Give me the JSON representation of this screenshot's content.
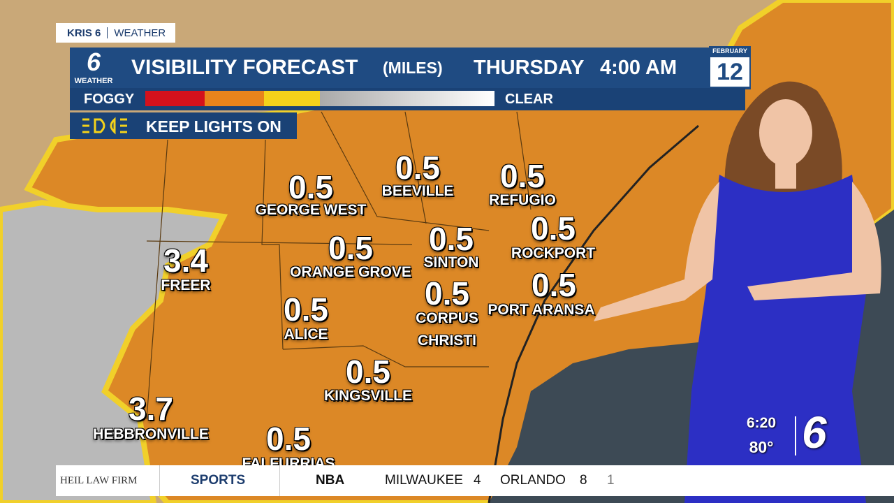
{
  "header": {
    "station": "KRIS 6",
    "section": "WEATHER"
  },
  "title_bar": {
    "logo": "6",
    "logo_caption": "WEATHER",
    "title": "VISIBILITY FORECAST",
    "units": "(MILES)",
    "day": "THURSDAY",
    "time": "4:00 AM",
    "month": "FEBRUARY",
    "date": "12"
  },
  "legend": {
    "low": "FOGGY",
    "high": "CLEAR"
  },
  "advisory": "KEEP LIGHTS ON",
  "cities": [
    {
      "value": "0.5",
      "name": "GEORGE WEST"
    },
    {
      "value": "0.5",
      "name": "BEEVILLE"
    },
    {
      "value": "0.5",
      "name": "REFUGIO"
    },
    {
      "value": "3.4",
      "name": "FREER"
    },
    {
      "value": "0.5",
      "name": "ORANGE GROVE"
    },
    {
      "value": "0.5",
      "name": "SINTON"
    },
    {
      "value": "0.5",
      "name": "ROCKPORT"
    },
    {
      "value": "0.5",
      "name": "ALICE"
    },
    {
      "value": "0.5",
      "name": "CORPUS CHRISTI"
    },
    {
      "value": "0.5",
      "name": "PORT ARANSA"
    },
    {
      "value": "0.5",
      "name": "KINGSVILLE"
    },
    {
      "value": "3.7",
      "name": "HEBBRONVILLE"
    },
    {
      "value": "0.5",
      "name": "FALFURRIAS"
    }
  ],
  "corner": {
    "time": "6:20",
    "temperature": "80°",
    "logo": "6"
  },
  "ticker": {
    "sponsor": "HEIL LAW FIRM",
    "section": "SPORTS",
    "league": "NBA",
    "team1": "MILWAUKEE",
    "score1": "4",
    "team2": "ORLANDO",
    "score2": "8",
    "period": "1"
  }
}
